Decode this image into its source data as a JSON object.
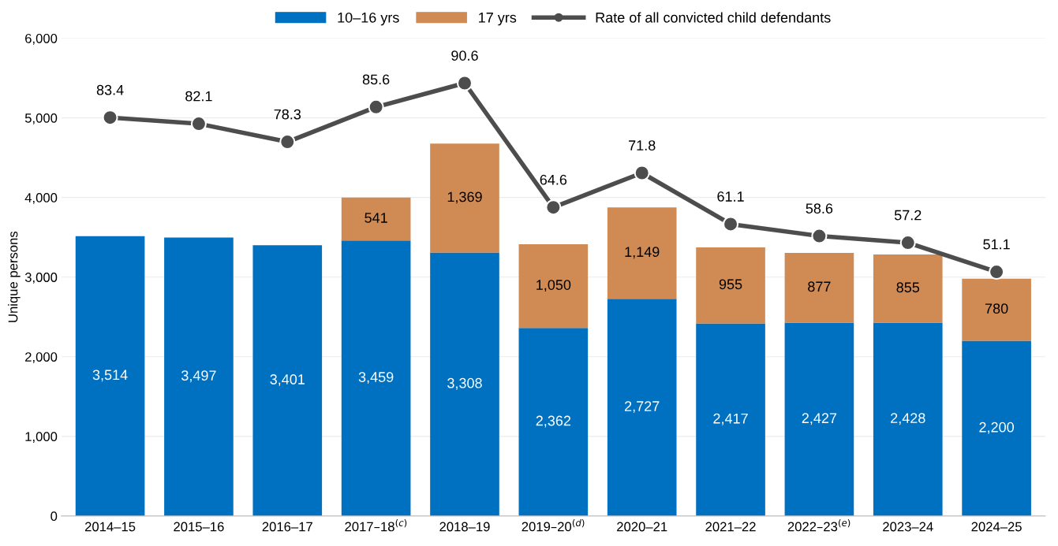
{
  "chart_data": {
    "type": "bar",
    "stacked": true,
    "ylabel": "Unique persons",
    "categories": [
      "2014–15",
      "2015–16",
      "2016–17",
      "2017–18$^{(c)}$",
      "2018–19",
      "2019–20$^{(d)}$",
      "2020–21",
      "2021–22",
      "2022–23$^{(e)}$",
      "2023–24",
      "2024–25"
    ],
    "series": [
      {
        "name": "10–16 yrs",
        "color": "#0070c0",
        "values": [
          3514,
          3497,
          3401,
          3459,
          3308,
          2362,
          2727,
          2417,
          2427,
          2428,
          2200
        ],
        "value_labels": [
          "3,514",
          "3,497",
          "3,401",
          "3,459",
          "3,308",
          "2,362",
          "2,727",
          "2,417",
          "2,427",
          "2,428",
          "2,200"
        ]
      },
      {
        "name": "17 yrs",
        "color": "#d08b55",
        "values": [
          null,
          null,
          null,
          541,
          1369,
          1050,
          1149,
          955,
          877,
          855,
          780
        ],
        "value_labels": [
          null,
          null,
          null,
          "541",
          "1,369",
          "1,050",
          "1,149",
          "955",
          "877",
          "855",
          "780"
        ]
      },
      {
        "name": "Rate of all convicted child defendants",
        "type": "line",
        "axis": "y2",
        "color": "#4d4d4d",
        "marker": "circle",
        "values": [
          83.4,
          82.1,
          78.3,
          85.6,
          90.6,
          64.6,
          71.8,
          61.1,
          58.6,
          57.2,
          51.1
        ],
        "value_labels": [
          "83.4",
          "82.1",
          "78.3",
          "85.6",
          "90.6",
          "64.6",
          "71.8",
          "61.1",
          "58.6",
          "57.2",
          "51.1"
        ]
      }
    ],
    "ylim": [
      0,
      6000
    ],
    "yticks": [
      {
        "value": 0,
        "label": "0"
      },
      {
        "value": 1000,
        "label": "1,000"
      },
      {
        "value": 2000,
        "label": "2,000"
      },
      {
        "value": 3000,
        "label": "3,000"
      },
      {
        "value": 4000,
        "label": "4,000"
      },
      {
        "value": 5000,
        "label": "5,000"
      },
      {
        "value": 6000,
        "label": "6,000"
      }
    ],
    "y2lim": [
      0,
      100
    ],
    "grid": "y",
    "legend": "top"
  }
}
